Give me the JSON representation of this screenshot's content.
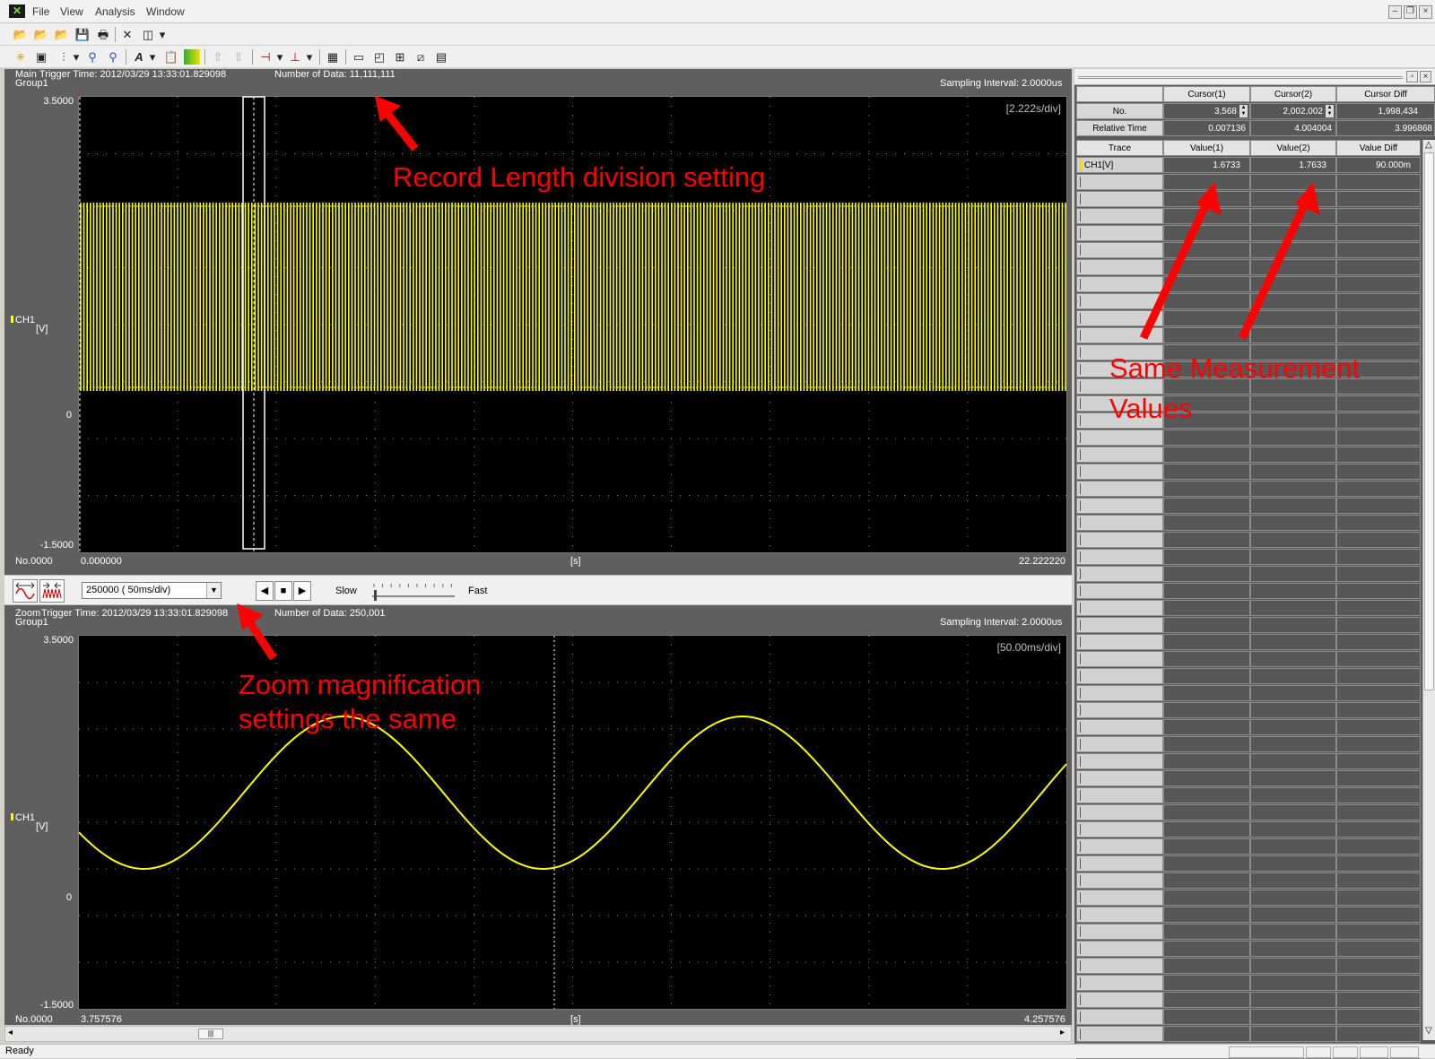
{
  "menu": [
    "File",
    "View",
    "Analysis",
    "Window"
  ],
  "main_panel": {
    "label": "Main",
    "group": "Group1",
    "trigger_time": "Trigger Time: 2012/03/29 13:33:01.829098",
    "number_of_data": "Number of Data: 11,111,111",
    "sampling_interval": "Sampling Interval:  2.0000us",
    "time_div": "[2.222s/div]",
    "y_max": "3.5000",
    "y_zero": "0",
    "y_min": "-1.5000",
    "channel": "CH1",
    "unit": "[V]",
    "no": "No.0000",
    "x_start": "0.000000",
    "x_unit": "[s]",
    "x_end": "22.222220"
  },
  "zoom_controls": {
    "combo_value": "250000    ( 50ms/div)",
    "slow": "Slow",
    "fast": "Fast"
  },
  "zoom_panel": {
    "label": "Zoom",
    "group": "Group1",
    "trigger_time": "Trigger Time: 2012/03/29 13:33:01.829098",
    "number_of_data": "Number of Data: 250,001",
    "sampling_interval": "Sampling Interval:  2.0000us",
    "time_div": "[50.00ms/div]",
    "y_max": "3.5000",
    "y_zero": "0",
    "y_min": "-1.5000",
    "channel": "CH1",
    "unit": "[V]",
    "no": "No.0000",
    "x_start": "3.757576",
    "x_unit": "[s]",
    "x_end": "4.257576"
  },
  "cursor_table": {
    "headers": [
      "Cursor(1)",
      "Cursor(2)",
      "Cursor Diff"
    ],
    "rows": [
      {
        "label": "No.",
        "values": [
          "3,568",
          "2,002,002",
          "1,998,434"
        ]
      },
      {
        "label": "Relative Time",
        "values": [
          "0.007136",
          "4.004004",
          "3.996868"
        ]
      }
    ]
  },
  "trace_table": {
    "headers": [
      "Trace",
      "Value(1)",
      "Value(2)",
      "Value Diff"
    ],
    "rows": [
      {
        "trace": "CH1[V]",
        "values": [
          "1.6733",
          "1.7633",
          "90.000m"
        ]
      }
    ]
  },
  "annotations": {
    "record_length": "Record Length division setting",
    "same_values_line1": "Same Measurement",
    "same_values_line2": "Values",
    "zoom_line1": "Zoom magnification",
    "zoom_line2": "settings the same"
  },
  "status": "Ready",
  "colors": {
    "waveform": "#ffff00",
    "annotation": "#ff0000",
    "plot_background": "#000000",
    "panel_background": "#5f5f5f"
  }
}
